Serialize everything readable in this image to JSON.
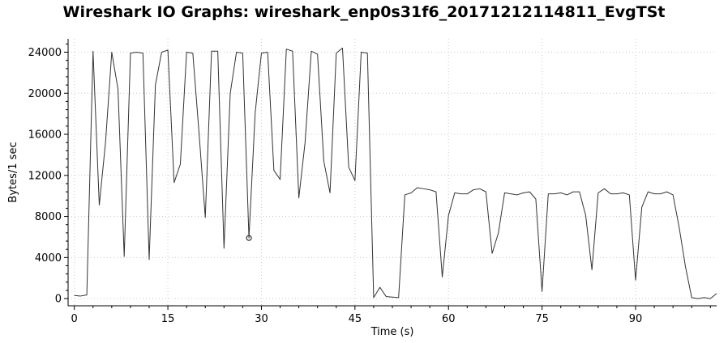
{
  "chart_data": {
    "type": "line",
    "title": "Wireshark IO Graphs: wireshark_enp0s31f6_20171212114811_EvgTSt",
    "xlabel": "Time (s)",
    "ylabel": "Bytes/1 sec",
    "xlim": [
      -1,
      103
    ],
    "ylim": [
      -700,
      25300
    ],
    "x_ticks": [
      0,
      15,
      30,
      45,
      60,
      75,
      90
    ],
    "y_ticks": [
      0,
      4000,
      8000,
      12000,
      16000,
      20000,
      24000
    ],
    "grid": true,
    "marker": {
      "x": 28,
      "y": 5900
    },
    "series": [
      {
        "color": "#333333",
        "points": [
          [
            0,
            300
          ],
          [
            1,
            250
          ],
          [
            2,
            350
          ],
          [
            3,
            24100
          ],
          [
            4,
            9100
          ],
          [
            5,
            15200
          ],
          [
            6,
            24000
          ],
          [
            7,
            20400
          ],
          [
            8,
            4100
          ],
          [
            9,
            23900
          ],
          [
            10,
            24000
          ],
          [
            11,
            23900
          ],
          [
            12,
            3800
          ],
          [
            13,
            20800
          ],
          [
            14,
            24000
          ],
          [
            15,
            24200
          ],
          [
            16,
            11300
          ],
          [
            17,
            13100
          ],
          [
            18,
            24000
          ],
          [
            19,
            23900
          ],
          [
            20,
            16100
          ],
          [
            21,
            7900
          ],
          [
            22,
            24100
          ],
          [
            23,
            24100
          ],
          [
            24,
            4900
          ],
          [
            25,
            20000
          ],
          [
            26,
            24000
          ],
          [
            27,
            23900
          ],
          [
            28,
            5900
          ],
          [
            29,
            18100
          ],
          [
            30,
            23900
          ],
          [
            31,
            24000
          ],
          [
            32,
            12500
          ],
          [
            33,
            11600
          ],
          [
            34,
            24300
          ],
          [
            35,
            24100
          ],
          [
            36,
            9800
          ],
          [
            37,
            15200
          ],
          [
            38,
            24100
          ],
          [
            39,
            23800
          ],
          [
            40,
            13400
          ],
          [
            41,
            10300
          ],
          [
            42,
            23900
          ],
          [
            43,
            24400
          ],
          [
            44,
            12800
          ],
          [
            45,
            11500
          ],
          [
            46,
            24000
          ],
          [
            47,
            23900
          ],
          [
            48,
            100
          ],
          [
            49,
            1100
          ],
          [
            50,
            200
          ],
          [
            52,
            100
          ],
          [
            53,
            10100
          ],
          [
            54,
            10300
          ],
          [
            55,
            10800
          ],
          [
            56,
            10700
          ],
          [
            57,
            10600
          ],
          [
            58,
            10400
          ],
          [
            59,
            2100
          ],
          [
            60,
            8100
          ],
          [
            61,
            10300
          ],
          [
            62,
            10200
          ],
          [
            63,
            10200
          ],
          [
            64,
            10600
          ],
          [
            65,
            10700
          ],
          [
            66,
            10400
          ],
          [
            67,
            4400
          ],
          [
            68,
            6400
          ],
          [
            69,
            10300
          ],
          [
            70,
            10200
          ],
          [
            71,
            10100
          ],
          [
            72,
            10300
          ],
          [
            73,
            10400
          ],
          [
            74,
            9700
          ],
          [
            75,
            700
          ],
          [
            76,
            10200
          ],
          [
            77,
            10200
          ],
          [
            78,
            10300
          ],
          [
            79,
            10100
          ],
          [
            80,
            10400
          ],
          [
            81,
            10400
          ],
          [
            82,
            8100
          ],
          [
            83,
            2800
          ],
          [
            84,
            10300
          ],
          [
            85,
            10700
          ],
          [
            86,
            10200
          ],
          [
            87,
            10200
          ],
          [
            88,
            10300
          ],
          [
            89,
            10100
          ],
          [
            90,
            1800
          ],
          [
            91,
            8900
          ],
          [
            92,
            10400
          ],
          [
            93,
            10200
          ],
          [
            94,
            10200
          ],
          [
            95,
            10400
          ],
          [
            96,
            10100
          ],
          [
            97,
            6900
          ],
          [
            98,
            3100
          ],
          [
            99,
            100
          ],
          [
            100,
            0
          ],
          [
            101,
            100
          ],
          [
            102,
            0
          ],
          [
            103,
            500
          ]
        ]
      }
    ]
  }
}
